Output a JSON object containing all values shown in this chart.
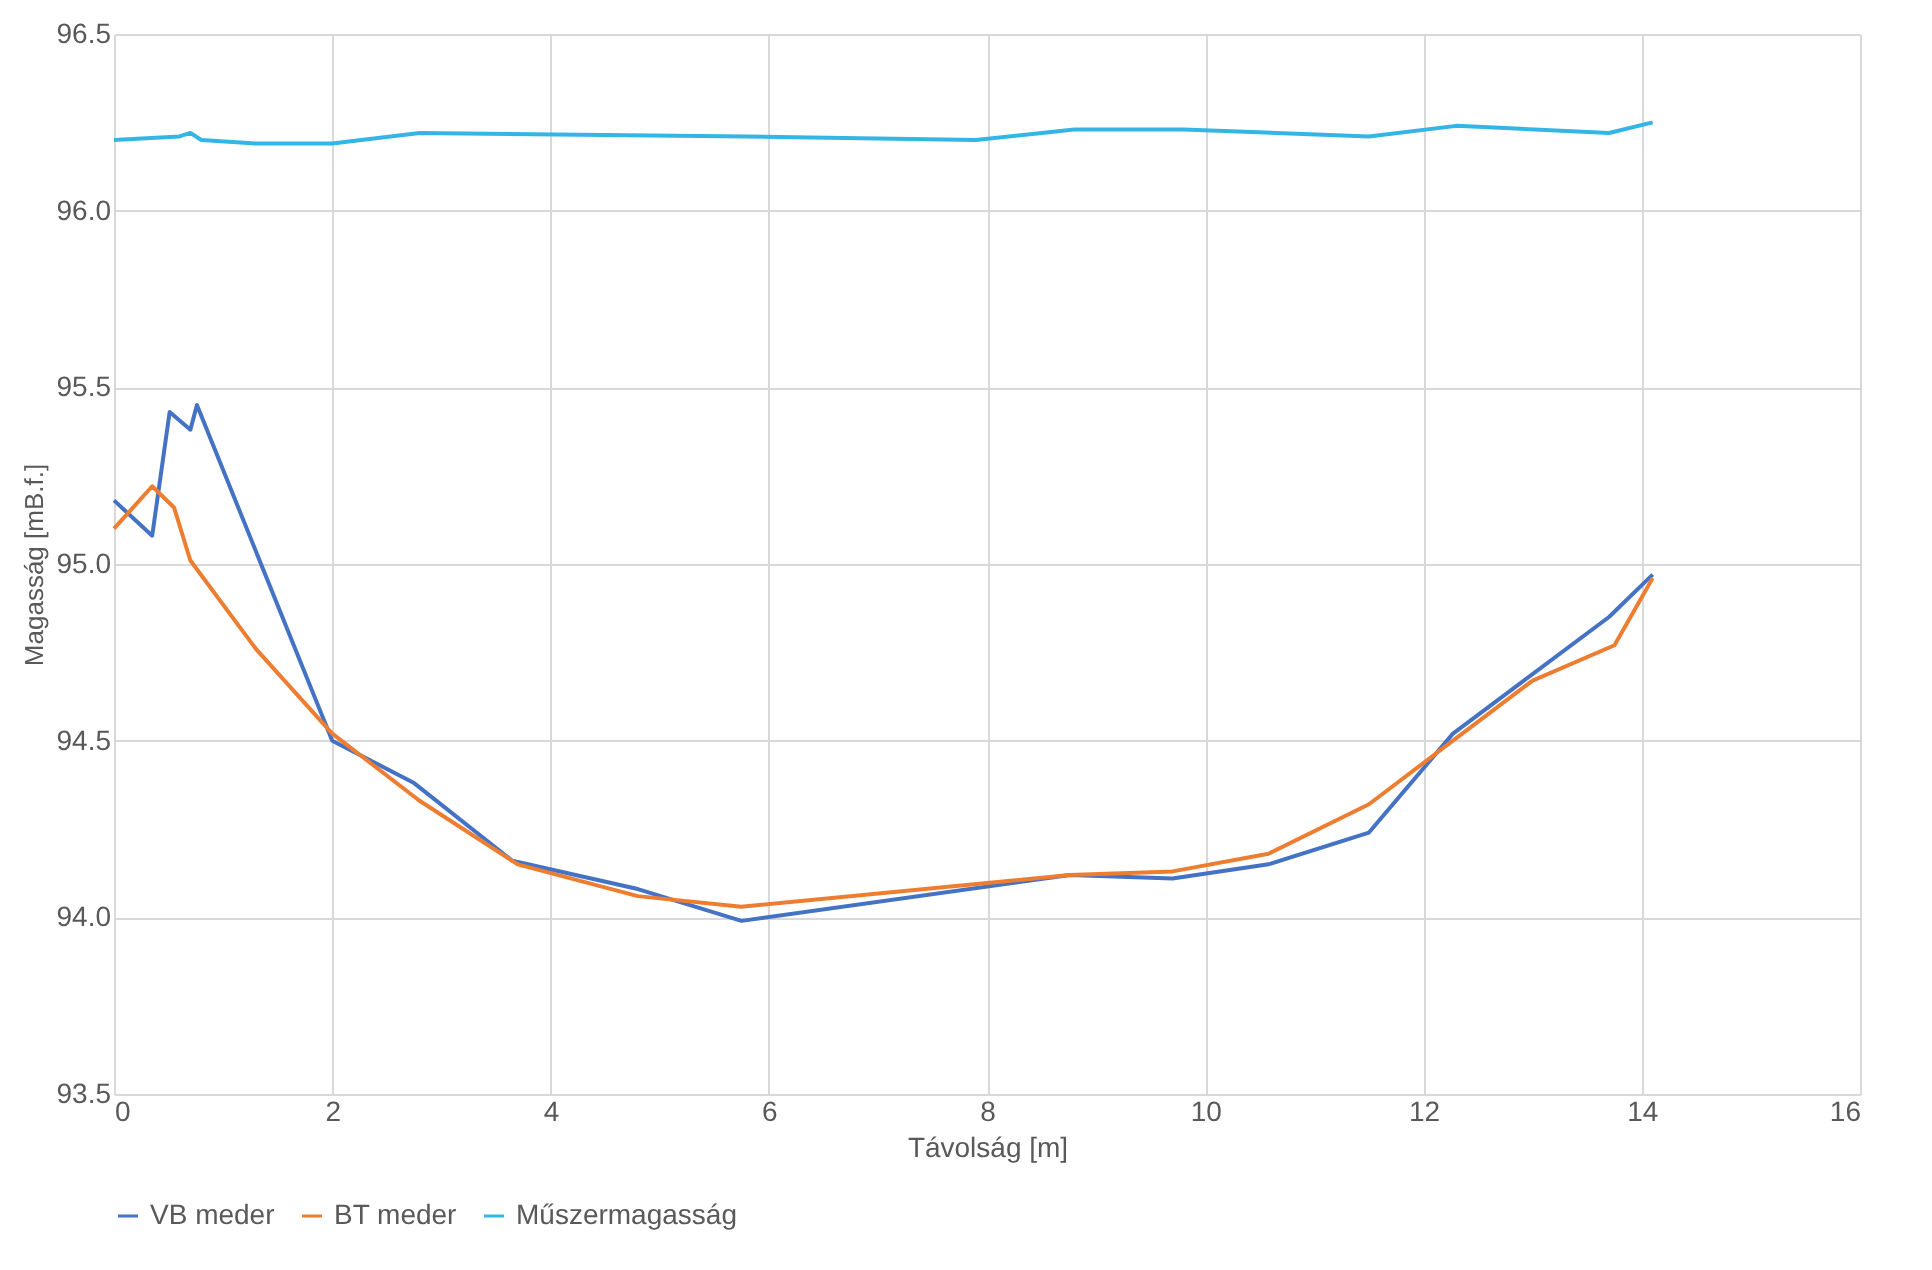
{
  "chart_data": {
    "type": "line",
    "xlabel": "Távolság [m]",
    "ylabel": "Magasság [mB.f.]",
    "xlim": [
      0,
      16
    ],
    "xticks": [
      0,
      2,
      4,
      6,
      8,
      10,
      12,
      14,
      16
    ],
    "ylim": [
      93.5,
      96.5
    ],
    "yticks": [
      {
        "value": 93.5,
        "label": "93.5"
      },
      {
        "value": 94,
        "label": "94.0"
      },
      {
        "value": 94.5,
        "label": "94.5"
      },
      {
        "value": 95,
        "label": "95.0"
      },
      {
        "value": 95.5,
        "label": "95.5"
      },
      {
        "value": 96,
        "label": "96.0"
      },
      {
        "value": 96.5,
        "label": "96.5"
      }
    ],
    "grid": true,
    "legend": "bottom",
    "marker": "none",
    "line_style": "solid",
    "series": [
      {
        "name": "VB meder",
        "color": "#4472c4",
        "x": [
          0,
          0.35,
          0.51,
          0.7,
          0.76,
          2.0,
          2.75,
          3.65,
          4.8,
          5.75,
          8.76,
          9.7,
          10.58,
          11.5,
          12.27,
          13.7,
          14.1
        ],
        "values": [
          95.18,
          95.08,
          95.43,
          95.38,
          95.45,
          94.5,
          94.38,
          94.16,
          94.08,
          93.99,
          94.12,
          94.11,
          94.15,
          94.24,
          94.52,
          94.85,
          94.97
        ]
      },
      {
        "name": "BT meder",
        "color": "#ed7d31",
        "x": [
          0,
          0.35,
          0.55,
          0.7,
          1.3,
          2.0,
          2.8,
          3.7,
          4.8,
          5.75,
          8.76,
          9.7,
          10.58,
          11.5,
          12.27,
          13.0,
          13.75,
          14.1
        ],
        "values": [
          95.1,
          95.22,
          95.16,
          95.01,
          94.76,
          94.52,
          94.33,
          94.15,
          94.06,
          94.03,
          94.12,
          94.13,
          94.18,
          94.32,
          94.5,
          94.67,
          94.77,
          94.96
        ]
      },
      {
        "name": "Műszermagasság",
        "color": "#33b5e5",
        "x": [
          0,
          0.6,
          0.7,
          0.8,
          1.3,
          2.0,
          2.8,
          5.8,
          7.9,
          8.8,
          9.8,
          11.5,
          12.3,
          13.7,
          14.1
        ],
        "values": [
          96.2,
          96.21,
          96.22,
          96.2,
          96.19,
          96.19,
          96.22,
          96.21,
          96.2,
          96.23,
          96.23,
          96.21,
          96.24,
          96.22,
          96.25
        ]
      }
    ]
  }
}
